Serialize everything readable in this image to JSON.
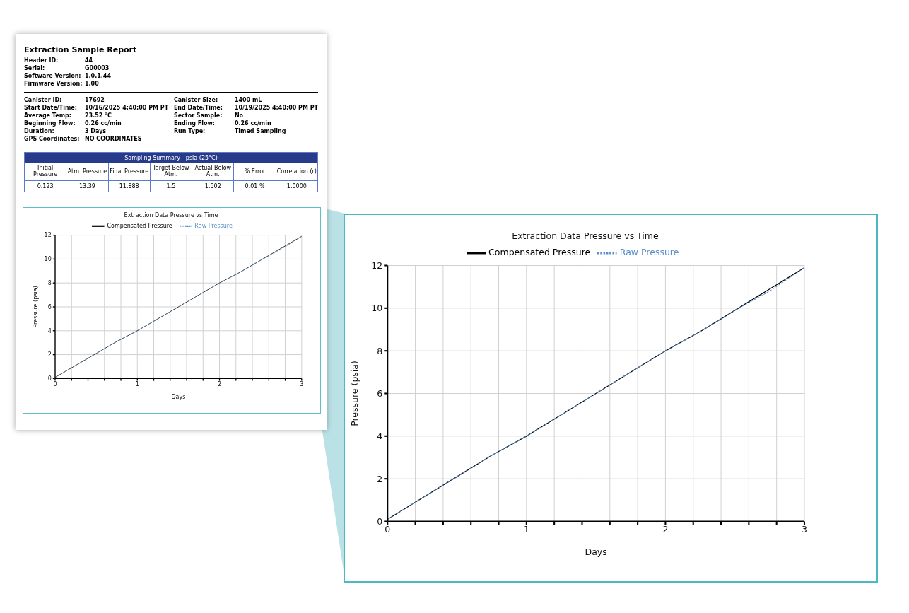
{
  "chart_data": [
    {
      "type": "other",
      "title": "Extraction Sample Report",
      "subtitle": "Sampling Summary - psia (25°C)",
      "annotations": [
        "Header ID:",
        "44",
        "Serial:",
        "G00003",
        "Software Version:",
        "1.0.1.44",
        "Firmware Version:",
        "1.00",
        "Canister ID:",
        "17692",
        "Start Date/Time:",
        "10/16/2025 4:40:00 PM PT",
        "Average Temp:",
        "23.52 °C",
        "Beginning Flow:",
        "0.26 cc/min",
        "Duration:",
        "3 Days",
        "GPS Coordinates:",
        "NO COORDINATES",
        "Canister Size:",
        "1400 mL",
        "End Date/Time:",
        "10/19/2025 4:40:00 PM PT",
        "Sector Sample:",
        "No",
        "Ending Flow:",
        "0.26 cc/min",
        "Run Type:",
        "Timed Sampling"
      ],
      "categories": [
        "Initial Pressure",
        "Atm. Pressure",
        "Final Pressure",
        "Target Below Atm.",
        "Actual Below Atm.",
        "% Error",
        "Correlation (r)"
      ],
      "value_labels": [
        "0.123",
        "13.39",
        "11.888",
        "1.5",
        "1.502",
        "0.01 %",
        "1.0000"
      ]
    },
    {
      "type": "line",
      "title": "Extraction Data Pressure vs Time",
      "xlabel": "Days",
      "ylabel": "Pressure (psia)",
      "legend": "top",
      "grid": true,
      "x": [
        0,
        0.25,
        0.5,
        0.75,
        1,
        1.25,
        1.5,
        1.75,
        2,
        2.25,
        2.5,
        2.75,
        3
      ],
      "xlim": [
        0,
        3
      ],
      "xticks": [
        0,
        {
          "value": 0.2,
          "label": null
        },
        {
          "value": 0.4,
          "label": null
        },
        {
          "value": 0.6,
          "label": null
        },
        {
          "value": 0.8,
          "label": null
        },
        1,
        {
          "value": 1.2,
          "label": null
        },
        {
          "value": 1.4,
          "label": null
        },
        {
          "value": 1.6,
          "label": null
        },
        {
          "value": 1.8,
          "label": null
        },
        2,
        {
          "value": 2.2,
          "label": null
        },
        {
          "value": 2.4,
          "label": null
        },
        {
          "value": 2.6,
          "label": null
        },
        {
          "value": 2.8,
          "label": null
        },
        3
      ],
      "ylim": [
        0,
        12
      ],
      "yticks": [
        0,
        2,
        4,
        6,
        8,
        10,
        12
      ],
      "series": [
        {
          "name": "Compensated Pressure",
          "color": "#000000",
          "line_style": "solid",
          "values": [
            0.1,
            1.1,
            2.1,
            3.1,
            4.0,
            5.0,
            6.0,
            7.0,
            8.0,
            8.9,
            9.9,
            10.9,
            11.9
          ]
        },
        {
          "name": "Raw Pressure",
          "color": "#5b8fc9",
          "line_style": "dashed",
          "values": [
            0.1,
            1.1,
            2.1,
            3.1,
            4.0,
            5.0,
            6.0,
            7.0,
            8.0,
            8.9,
            9.9,
            10.8,
            11.9
          ]
        }
      ]
    },
    {
      "type": "line",
      "title": "Extraction Data Pressure vs Time",
      "xlabel": "Days",
      "ylabel": "Pressure (psia)",
      "legend": "top",
      "grid": true,
      "x": [
        0,
        0.25,
        0.5,
        0.75,
        1,
        1.25,
        1.5,
        1.75,
        2,
        2.25,
        2.5,
        2.75,
        3
      ],
      "xlim": [
        0,
        3
      ],
      "xticks": [
        0,
        {
          "value": 0.2,
          "label": null
        },
        {
          "value": 0.4,
          "label": null
        },
        {
          "value": 0.6,
          "label": null
        },
        {
          "value": 0.8,
          "label": null
        },
        1,
        {
          "value": 1.2,
          "label": null
        },
        {
          "value": 1.4,
          "label": null
        },
        {
          "value": 1.6,
          "label": null
        },
        {
          "value": 1.8,
          "label": null
        },
        2,
        {
          "value": 2.2,
          "label": null
        },
        {
          "value": 2.4,
          "label": null
        },
        {
          "value": 2.6,
          "label": null
        },
        {
          "value": 2.8,
          "label": null
        },
        3
      ],
      "ylim": [
        0,
        12
      ],
      "yticks": [
        0,
        2,
        4,
        6,
        8,
        10,
        12
      ],
      "series": [
        {
          "name": "Compensated Pressure",
          "color": "#000000",
          "line_style": "solid",
          "values": [
            0.1,
            1.1,
            2.1,
            3.1,
            4.0,
            5.0,
            6.0,
            7.0,
            8.0,
            8.9,
            9.9,
            10.9,
            11.9
          ]
        },
        {
          "name": "Raw Pressure",
          "color": "#5b8fc9",
          "line_style": "dashed",
          "values": [
            0.1,
            1.1,
            2.1,
            3.1,
            4.0,
            5.0,
            6.0,
            7.0,
            8.0,
            8.9,
            9.9,
            10.8,
            11.9
          ]
        }
      ]
    }
  ]
}
